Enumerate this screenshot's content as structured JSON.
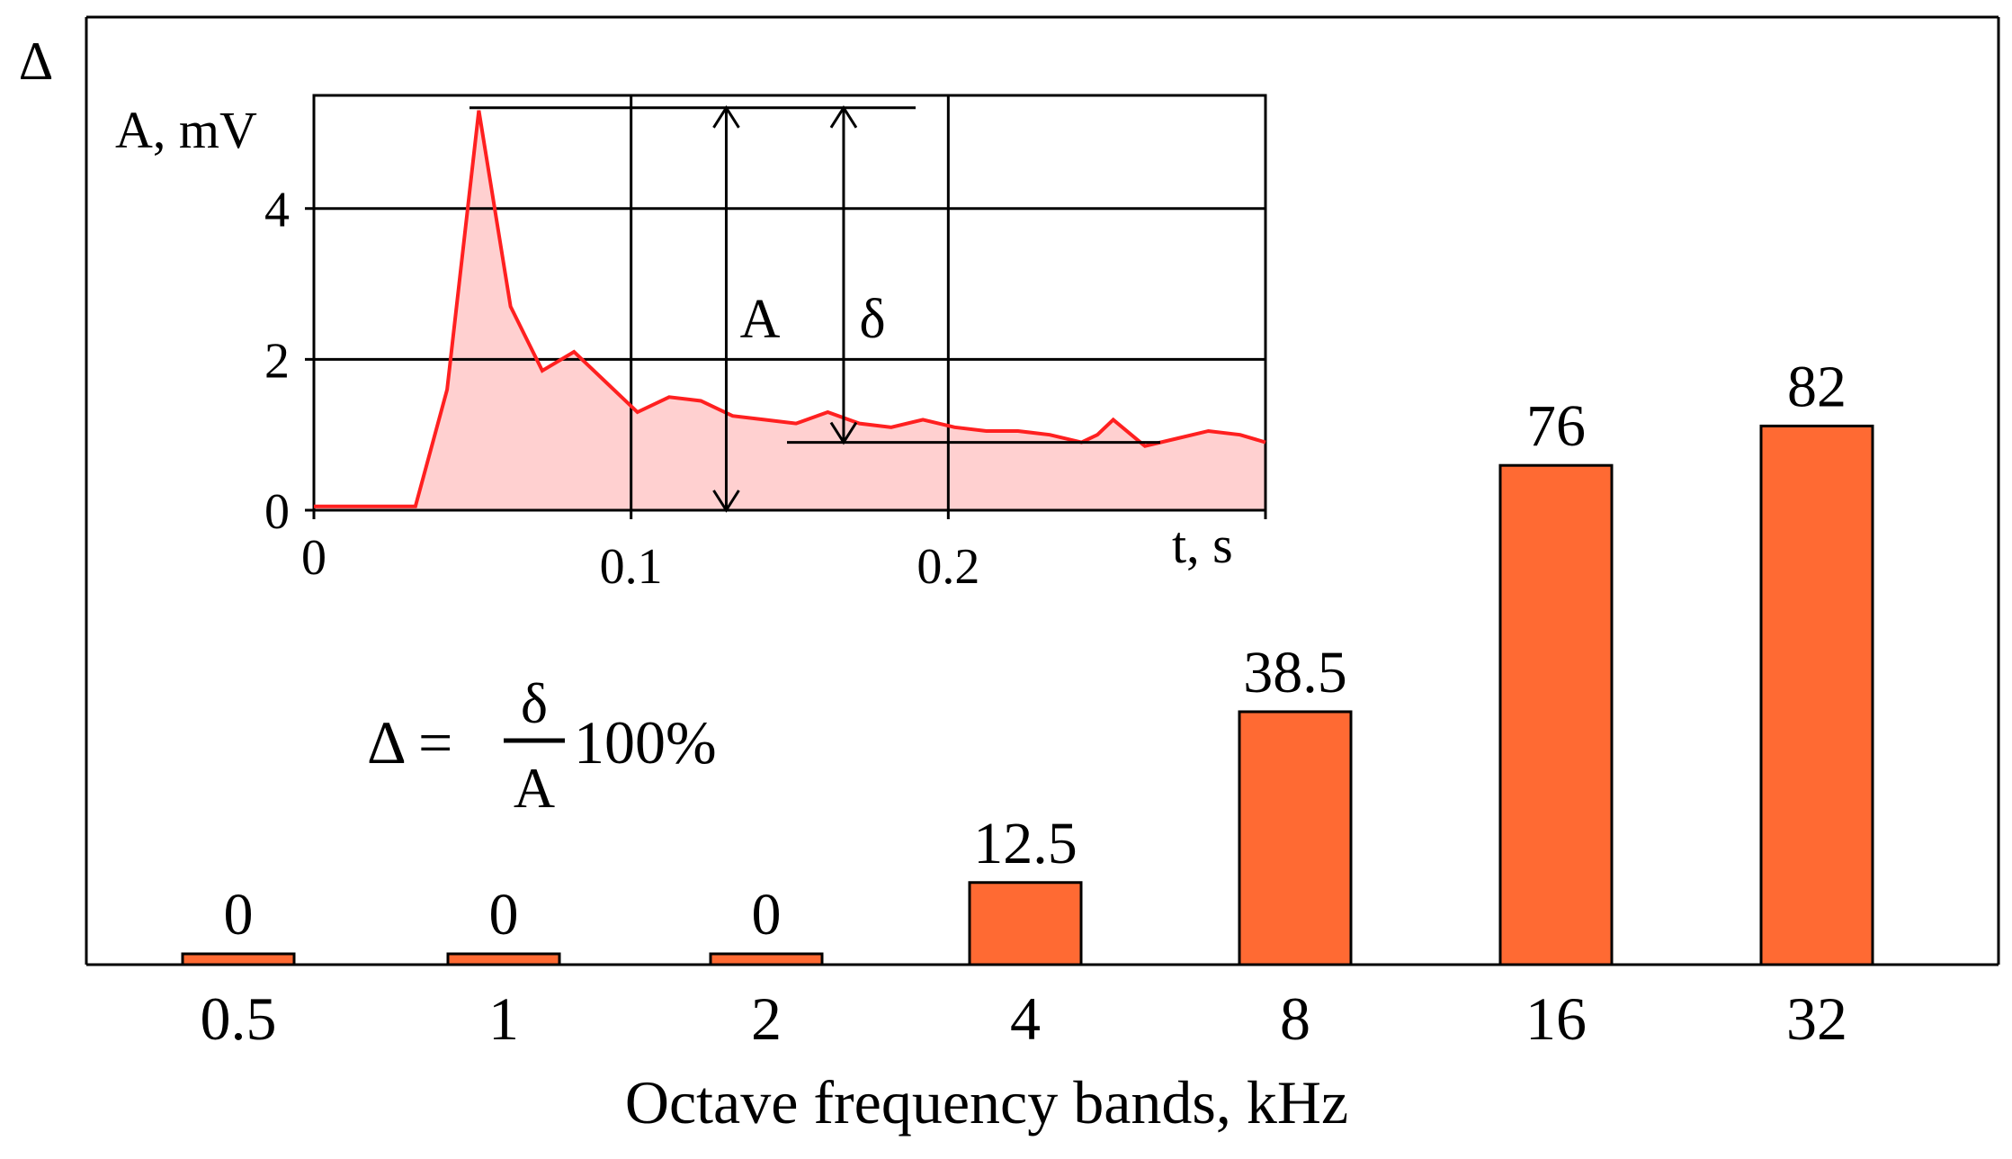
{
  "chart_data": [
    {
      "type": "bar",
      "ylabel": "Δ",
      "xlabel": "Octave frequency bands, kHz",
      "categories": [
        "0.5",
        "1",
        "2",
        "4",
        "8",
        "16",
        "32"
      ],
      "values": [
        0,
        0,
        0,
        12.5,
        38.5,
        76,
        82
      ],
      "data_labels": [
        "0",
        "0",
        "0",
        "12.5",
        "38.5",
        "76",
        "82"
      ],
      "bar_color": "#ff6a33",
      "formula": {
        "lhs": "Δ =",
        "numerator": "δ",
        "denominator": "A",
        "suffix": "100%"
      }
    },
    {
      "type": "area",
      "title": "",
      "ylabel": "A, mV",
      "xlabel": "t, s",
      "xlim": [
        0,
        0.3
      ],
      "ylim": [
        0,
        5.5
      ],
      "x_ticks": [
        "0",
        "0.1",
        "0.2"
      ],
      "y_ticks": [
        "0",
        "2",
        "4"
      ],
      "grid": true,
      "line_color": "#ff2020",
      "fill_color": "#ffd0d0",
      "x": [
        0,
        0.032,
        0.042,
        0.052,
        0.062,
        0.072,
        0.082,
        0.092,
        0.102,
        0.112,
        0.122,
        0.132,
        0.142,
        0.152,
        0.162,
        0.172,
        0.182,
        0.192,
        0.202,
        0.212,
        0.222,
        0.232,
        0.242,
        0.247,
        0.252,
        0.262,
        0.272,
        0.282,
        0.292,
        0.3
      ],
      "y": [
        0.05,
        0.05,
        1.6,
        5.3,
        2.7,
        1.85,
        2.1,
        1.7,
        1.3,
        1.5,
        1.45,
        1.25,
        1.2,
        1.15,
        1.3,
        1.15,
        1.1,
        1.2,
        1.1,
        1.05,
        1.05,
        1.0,
        0.9,
        1.0,
        1.2,
        0.85,
        0.95,
        1.05,
        1.0,
        0.9
      ],
      "annotations": {
        "A_label": "A",
        "delta_label": "δ",
        "A_value": 5.3,
        "delta_base": 0.9
      }
    }
  ]
}
